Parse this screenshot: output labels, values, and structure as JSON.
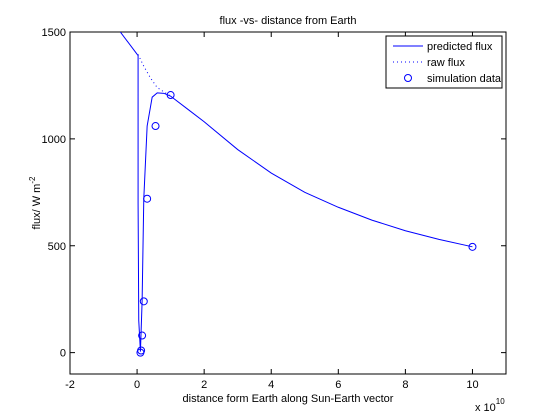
{
  "chart_data": {
    "type": "line",
    "title": "flux -vs- distance from Earth",
    "xlabel": "distance form Earth along Sun-Earth vector",
    "ylabel": "flux/ W m",
    "ylabel_superscript": "-2",
    "x_multiplier_base": "x 10",
    "x_multiplier_exponent": "10",
    "xlim": [
      -2,
      11
    ],
    "ylim": [
      -100,
      1500
    ],
    "x_ticks": [
      -2,
      0,
      2,
      4,
      6,
      8,
      10
    ],
    "y_ticks": [
      0,
      500,
      1000,
      1500
    ],
    "grid": false,
    "legend_position": "top-right",
    "colors": {
      "series": "#0000ff",
      "axes": "#000000",
      "background": "#ffffff"
    },
    "series": [
      {
        "name": "predicted flux",
        "style": "solid",
        "x": [
          -0.5,
          0.03,
          0.03,
          0.03,
          0.05,
          0.1,
          0.15,
          0.2,
          0.3,
          0.45,
          0.6,
          0.8,
          1.0,
          1.5,
          2.0,
          3.0,
          4.0,
          5.0,
          6.0,
          7.0,
          8.0,
          9.0,
          10.0
        ],
        "y": [
          1500,
          1390,
          700,
          700,
          150,
          5,
          240,
          720,
          1060,
          1195,
          1215,
          1213,
          1200,
          1140,
          1080,
          950,
          840,
          750,
          680,
          620,
          570,
          530,
          495
        ]
      },
      {
        "name": "raw flux",
        "style": "dotted",
        "x": [
          0.03,
          0.2,
          0.4,
          0.6,
          0.8,
          1.0
        ],
        "y": [
          1395,
          1340,
          1285,
          1240,
          1220,
          1200
        ]
      },
      {
        "name": "simulation data",
        "style": "markers-circle",
        "x": [
          0.1,
          0.12,
          0.15,
          0.2,
          0.3,
          0.55,
          1.0,
          10.0
        ],
        "y": [
          0,
          10,
          80,
          240,
          720,
          1060,
          1205,
          495
        ]
      }
    ]
  }
}
